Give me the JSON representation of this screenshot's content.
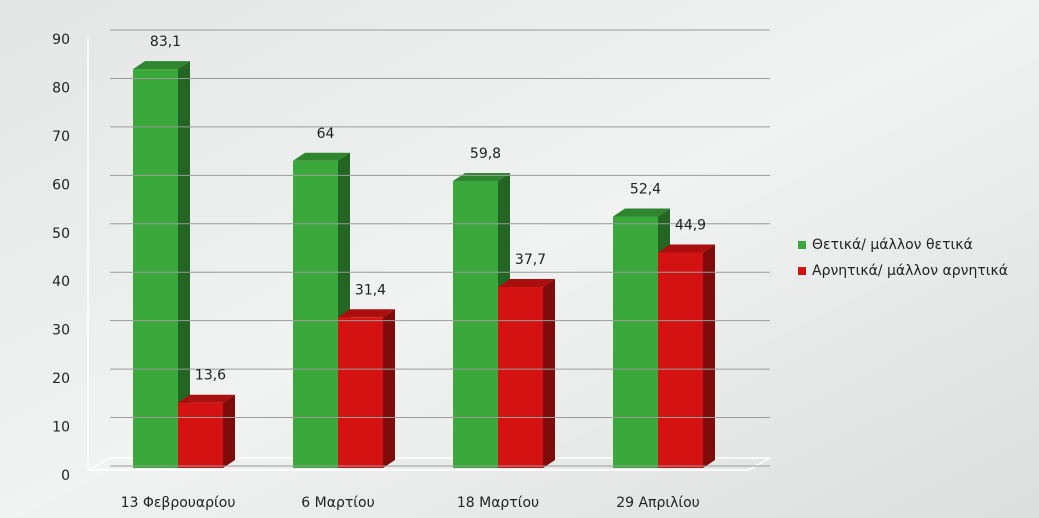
{
  "chart_data": {
    "type": "bar3d",
    "categories": [
      "13 Φεβρουαρίου",
      "6 Μαρτίου",
      "18 Μαρτίου",
      "29 Απριλίου"
    ],
    "series": [
      {
        "name": "Θετικά/ μάλλον θετικά",
        "color": "#3aa83a",
        "values": [
          83.1,
          64,
          59.8,
          52.4
        ],
        "value_labels": [
          "83,1",
          "64",
          "59,8",
          "52,4"
        ]
      },
      {
        "name": "Αρνητικά/ μάλλον αρνητικά",
        "color": "#d41212",
        "values": [
          13.6,
          31.4,
          37.7,
          44.9
        ],
        "value_labels": [
          "13,6",
          "31,4",
          "37,7",
          "44,9"
        ]
      }
    ],
    "ylim": [
      0,
      90
    ],
    "yticks": [
      0,
      10,
      20,
      30,
      40,
      50,
      60,
      70,
      80,
      90
    ],
    "grid": true,
    "legend": "right"
  }
}
